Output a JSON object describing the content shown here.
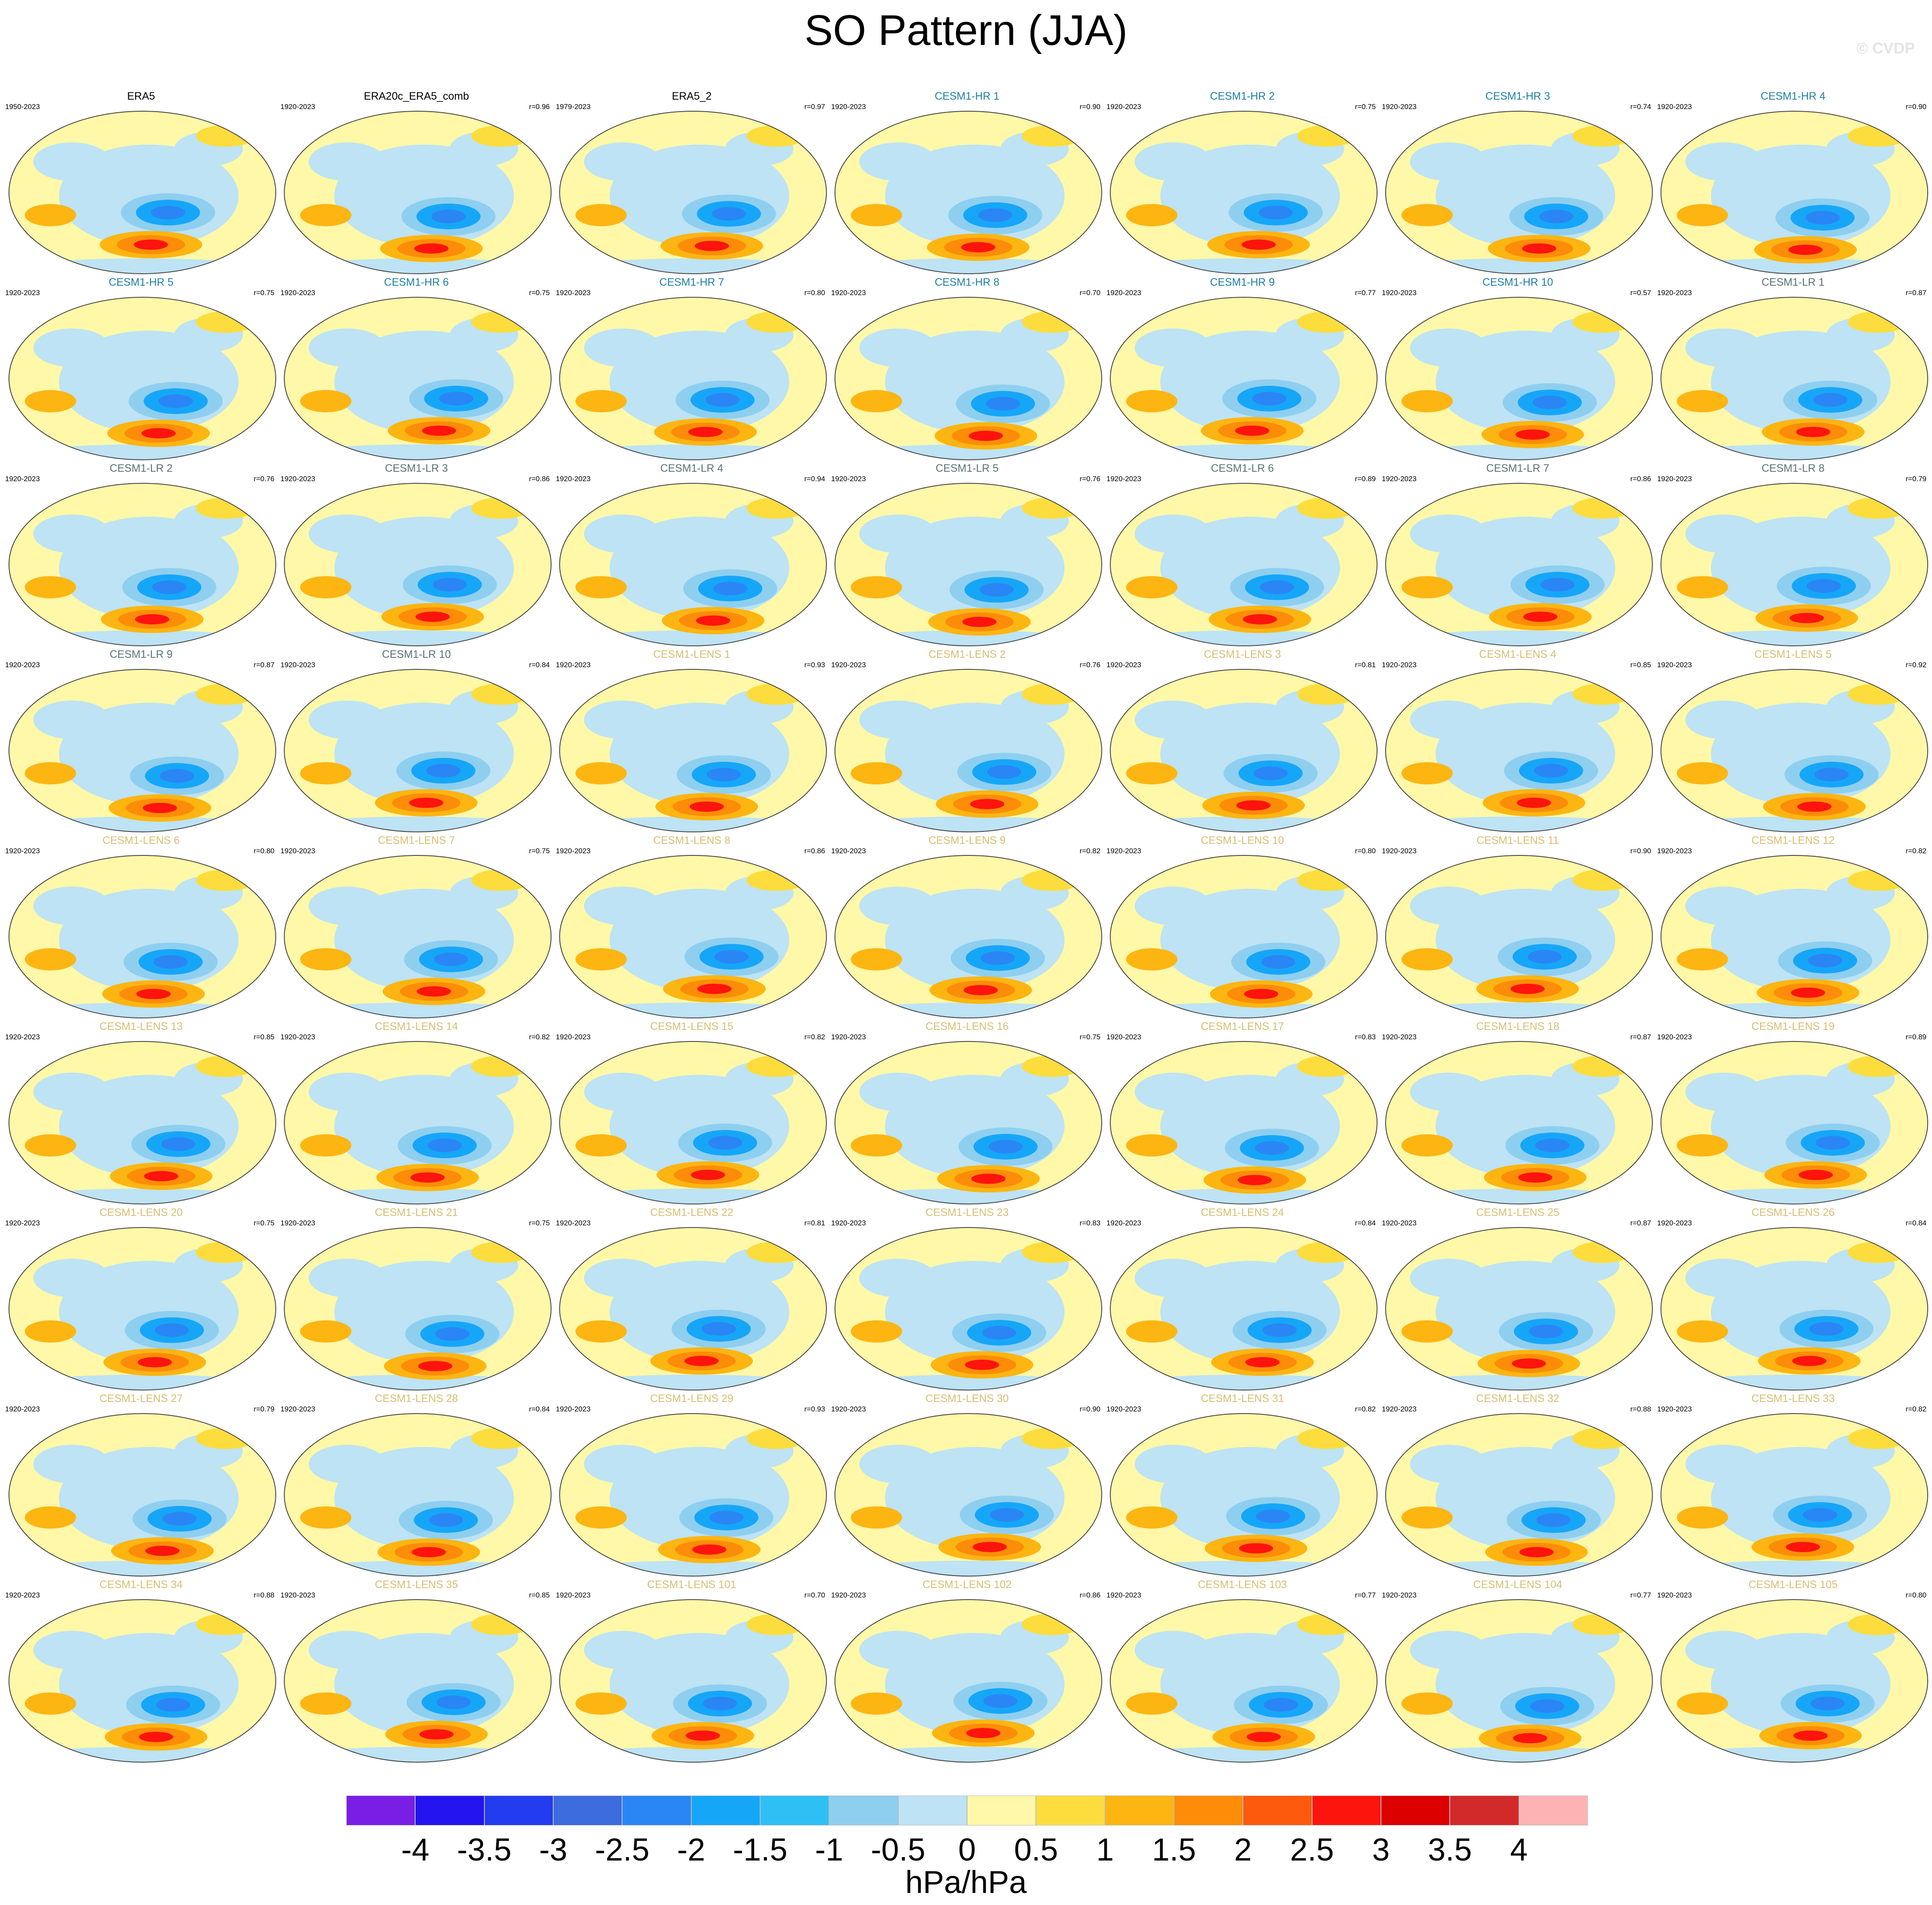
{
  "title": "SO Pattern (JJA)",
  "watermark": "© CVDP",
  "units": "hPa/hPa",
  "colorbar": {
    "labels": [
      "-4",
      "-3.5",
      "-3",
      "-2.5",
      "-2",
      "-1.5",
      "-1",
      "-0.5",
      "0",
      "0.5",
      "1",
      "1.5",
      "2",
      "2.5",
      "3",
      "3.5",
      "4"
    ],
    "colors": [
      "#7a1ee6",
      "#2314f0",
      "#233cf0",
      "#3d6cde",
      "#2a86f5",
      "#16a6f8",
      "#2ec0f5",
      "#8ecff0",
      "#bde3f4",
      "#fff8a8",
      "#fddd3d",
      "#fdb512",
      "#fd8c08",
      "#fd5a0e",
      "#fd140c",
      "#dc0000",
      "#d22a2a",
      "#fdb3b3"
    ]
  },
  "title_colors": {
    "obs": "#000000",
    "hr": "#1e7fa8",
    "lr": "#5a7278",
    "lens": "#d8be72"
  },
  "chart_data": {
    "type": "heatmap",
    "title": "SO Pattern (JJA)",
    "units": "hPa/hPa",
    "panels": [
      {
        "name": "ERA5",
        "years": "1950-2023",
        "r": "",
        "group": "obs"
      },
      {
        "name": "ERA20c_ERA5_comb",
        "years": "1920-2023",
        "r": "r=0.96",
        "group": "obs"
      },
      {
        "name": "ERA5_2",
        "years": "1979-2023",
        "r": "r=0.97",
        "group": "obs"
      },
      {
        "name": "CESM1-HR 1",
        "years": "1920-2023",
        "r": "r=0.90",
        "group": "hr"
      },
      {
        "name": "CESM1-HR 2",
        "years": "1920-2023",
        "r": "r=0.75",
        "group": "hr"
      },
      {
        "name": "CESM1-HR 3",
        "years": "1920-2023",
        "r": "r=0.74",
        "group": "hr"
      },
      {
        "name": "CESM1-HR 4",
        "years": "1920-2023",
        "r": "r=0.90",
        "group": "hr"
      },
      {
        "name": "CESM1-HR 5",
        "years": "1920-2023",
        "r": "r=0.75",
        "group": "hr"
      },
      {
        "name": "CESM1-HR 6",
        "years": "1920-2023",
        "r": "r=0.75",
        "group": "hr"
      },
      {
        "name": "CESM1-HR 7",
        "years": "1920-2023",
        "r": "r=0.80",
        "group": "hr"
      },
      {
        "name": "CESM1-HR 8",
        "years": "1920-2023",
        "r": "r=0.70",
        "group": "hr"
      },
      {
        "name": "CESM1-HR 9",
        "years": "1920-2023",
        "r": "r=0.77",
        "group": "hr"
      },
      {
        "name": "CESM1-HR 10",
        "years": "1920-2023",
        "r": "r=0.57",
        "group": "hr"
      },
      {
        "name": "CESM1-LR 1",
        "years": "1920-2023",
        "r": "r=0.87",
        "group": "lr"
      },
      {
        "name": "CESM1-LR 2",
        "years": "1920-2023",
        "r": "r=0.76",
        "group": "lr"
      },
      {
        "name": "CESM1-LR 3",
        "years": "1920-2023",
        "r": "r=0.86",
        "group": "lr"
      },
      {
        "name": "CESM1-LR 4",
        "years": "1920-2023",
        "r": "r=0.94",
        "group": "lr"
      },
      {
        "name": "CESM1-LR 5",
        "years": "1920-2023",
        "r": "r=0.76",
        "group": "lr"
      },
      {
        "name": "CESM1-LR 6",
        "years": "1920-2023",
        "r": "r=0.89",
        "group": "lr"
      },
      {
        "name": "CESM1-LR 7",
        "years": "1920-2023",
        "r": "r=0.86",
        "group": "lr"
      },
      {
        "name": "CESM1-LR 8",
        "years": "1920-2023",
        "r": "r=0.79",
        "group": "lr"
      },
      {
        "name": "CESM1-LR 9",
        "years": "1920-2023",
        "r": "r=0.87",
        "group": "lr"
      },
      {
        "name": "CESM1-LR 10",
        "years": "1920-2023",
        "r": "r=0.84",
        "group": "lr"
      },
      {
        "name": "CESM1-LENS 1",
        "years": "1920-2023",
        "r": "r=0.93",
        "group": "lens"
      },
      {
        "name": "CESM1-LENS 2",
        "years": "1920-2023",
        "r": "r=0.76",
        "group": "lens"
      },
      {
        "name": "CESM1-LENS 3",
        "years": "1920-2023",
        "r": "r=0.81",
        "group": "lens"
      },
      {
        "name": "CESM1-LENS 4",
        "years": "1920-2023",
        "r": "r=0.85",
        "group": "lens"
      },
      {
        "name": "CESM1-LENS 5",
        "years": "1920-2023",
        "r": "r=0.92",
        "group": "lens"
      },
      {
        "name": "CESM1-LENS 6",
        "years": "1920-2023",
        "r": "r=0.80",
        "group": "lens"
      },
      {
        "name": "CESM1-LENS 7",
        "years": "1920-2023",
        "r": "r=0.75",
        "group": "lens"
      },
      {
        "name": "CESM1-LENS 8",
        "years": "1920-2023",
        "r": "r=0.86",
        "group": "lens"
      },
      {
        "name": "CESM1-LENS 9",
        "years": "1920-2023",
        "r": "r=0.82",
        "group": "lens"
      },
      {
        "name": "CESM1-LENS 10",
        "years": "1920-2023",
        "r": "r=0.80",
        "group": "lens"
      },
      {
        "name": "CESM1-LENS 11",
        "years": "1920-2023",
        "r": "r=0.90",
        "group": "lens"
      },
      {
        "name": "CESM1-LENS 12",
        "years": "1920-2023",
        "r": "r=0.82",
        "group": "lens"
      },
      {
        "name": "CESM1-LENS 13",
        "years": "1920-2023",
        "r": "r=0.85",
        "group": "lens"
      },
      {
        "name": "CESM1-LENS 14",
        "years": "1920-2023",
        "r": "r=0.82",
        "group": "lens"
      },
      {
        "name": "CESM1-LENS 15",
        "years": "1920-2023",
        "r": "r=0.82",
        "group": "lens"
      },
      {
        "name": "CESM1-LENS 16",
        "years": "1920-2023",
        "r": "r=0.75",
        "group": "lens"
      },
      {
        "name": "CESM1-LENS 17",
        "years": "1920-2023",
        "r": "r=0.83",
        "group": "lens"
      },
      {
        "name": "CESM1-LENS 18",
        "years": "1920-2023",
        "r": "r=0.87",
        "group": "lens"
      },
      {
        "name": "CESM1-LENS 19",
        "years": "1920-2023",
        "r": "r=0.89",
        "group": "lens"
      },
      {
        "name": "CESM1-LENS 20",
        "years": "1920-2023",
        "r": "r=0.75",
        "group": "lens"
      },
      {
        "name": "CESM1-LENS 21",
        "years": "1920-2023",
        "r": "r=0.75",
        "group": "lens"
      },
      {
        "name": "CESM1-LENS 22",
        "years": "1920-2023",
        "r": "r=0.81",
        "group": "lens"
      },
      {
        "name": "CESM1-LENS 23",
        "years": "1920-2023",
        "r": "r=0.83",
        "group": "lens"
      },
      {
        "name": "CESM1-LENS 24",
        "years": "1920-2023",
        "r": "r=0.84",
        "group": "lens"
      },
      {
        "name": "CESM1-LENS 25",
        "years": "1920-2023",
        "r": "r=0.87",
        "group": "lens"
      },
      {
        "name": "CESM1-LENS 26",
        "years": "1920-2023",
        "r": "r=0.84",
        "group": "lens"
      },
      {
        "name": "CESM1-LENS 27",
        "years": "1920-2023",
        "r": "r=0.79",
        "group": "lens"
      },
      {
        "name": "CESM1-LENS 28",
        "years": "1920-2023",
        "r": "r=0.84",
        "group": "lens"
      },
      {
        "name": "CESM1-LENS 29",
        "years": "1920-2023",
        "r": "r=0.93",
        "group": "lens"
      },
      {
        "name": "CESM1-LENS 30",
        "years": "1920-2023",
        "r": "r=0.90",
        "group": "lens"
      },
      {
        "name": "CESM1-LENS 31",
        "years": "1920-2023",
        "r": "r=0.82",
        "group": "lens"
      },
      {
        "name": "CESM1-LENS 32",
        "years": "1920-2023",
        "r": "r=0.88",
        "group": "lens"
      },
      {
        "name": "CESM1-LENS 33",
        "years": "1920-2023",
        "r": "r=0.82",
        "group": "lens"
      },
      {
        "name": "CESM1-LENS 34",
        "years": "1920-2023",
        "r": "r=0.88",
        "group": "lens"
      },
      {
        "name": "CESM1-LENS 35",
        "years": "1920-2023",
        "r": "r=0.85",
        "group": "lens"
      },
      {
        "name": "CESM1-LENS 101",
        "years": "1920-2023",
        "r": "r=0.70",
        "group": "lens"
      },
      {
        "name": "CESM1-LENS 102",
        "years": "1920-2023",
        "r": "r=0.86",
        "group": "lens"
      },
      {
        "name": "CESM1-LENS 103",
        "years": "1920-2023",
        "r": "r=0.77",
        "group": "lens"
      },
      {
        "name": "CESM1-LENS 104",
        "years": "1920-2023",
        "r": "r=0.77",
        "group": "lens"
      },
      {
        "name": "CESM1-LENS 105",
        "years": "1920-2023",
        "r": "r=0.80",
        "group": "lens"
      }
    ],
    "colorbar_levels": [
      -4,
      -3.5,
      -3,
      -2.5,
      -2,
      -1.5,
      -1,
      -0.5,
      0,
      0.5,
      1,
      1.5,
      2,
      2.5,
      3,
      3.5,
      4
    ]
  }
}
